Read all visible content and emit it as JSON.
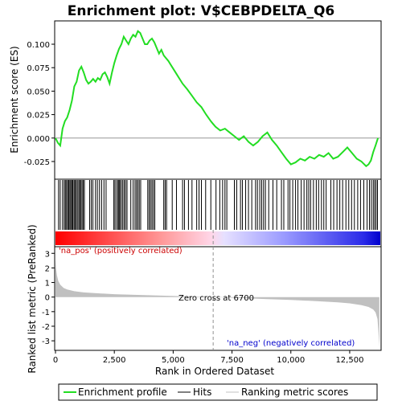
{
  "title": "Enrichment plot: V$CEBPDELTA_Q6",
  "colors": {
    "enrichment_line": "#22dd22",
    "hits": "#000000",
    "metric_fill": "#c0c0c0",
    "zero_cross_line": "#909090",
    "pos_label": "#cc0000",
    "neg_label": "#0000cc"
  },
  "annotations": {
    "pos_label": "'na_pos' (positively correlated)",
    "neg_label": "'na_neg' (negatively correlated)",
    "zero_cross": "Zero cross at 6700"
  },
  "legend": {
    "items": [
      "Enrichment profile",
      "Hits",
      "Ranking metric scores"
    ]
  },
  "chart_data": [
    {
      "type": "line",
      "panel": "enrichment",
      "ylabel": "Enrichment score (ES)",
      "xlim": [
        0,
        13800
      ],
      "ylim": [
        -0.043,
        0.124
      ],
      "yticks": [
        -0.025,
        0.0,
        0.025,
        0.05,
        0.075,
        0.1
      ],
      "ytick_labels": [
        "-0.025",
        "0.000",
        "0.025",
        "0.050",
        "0.075",
        "0.100"
      ],
      "series": [
        {
          "x": [
            0,
            100,
            200,
            300,
            400,
            500,
            600,
            700,
            800,
            900,
            1000,
            1100,
            1200,
            1300,
            1400,
            1500,
            1600,
            1700,
            1800,
            1900,
            2000,
            2100,
            2200,
            2300,
            2400,
            2500,
            2600,
            2700,
            2800,
            2900,
            3000,
            3100,
            3200,
            3300,
            3400,
            3500,
            3600,
            3700,
            3800,
            3900,
            4000,
            4100,
            4200,
            4300,
            4400,
            4500,
            4600,
            4700,
            4800,
            4900,
            5000,
            5200,
            5400,
            5600,
            5800,
            6000,
            6200,
            6400,
            6600,
            6700,
            6800,
            7000,
            7200,
            7400,
            7600,
            7800,
            8000,
            8200,
            8400,
            8600,
            8800,
            9000,
            9200,
            9400,
            9600,
            9800,
            10000,
            10200,
            10400,
            10600,
            10800,
            11000,
            11200,
            11400,
            11600,
            11800,
            12000,
            12200,
            12400,
            12600,
            12800,
            13000,
            13200,
            13300,
            13400,
            13500,
            13600,
            13700
          ],
          "y": [
            0.0,
            -0.005,
            -0.008,
            0.01,
            0.018,
            0.022,
            0.03,
            0.04,
            0.055,
            0.06,
            0.072,
            0.076,
            0.07,
            0.062,
            0.058,
            0.06,
            0.063,
            0.06,
            0.064,
            0.062,
            0.068,
            0.07,
            0.065,
            0.058,
            0.07,
            0.08,
            0.088,
            0.095,
            0.1,
            0.108,
            0.104,
            0.1,
            0.106,
            0.11,
            0.108,
            0.114,
            0.112,
            0.106,
            0.1,
            0.1,
            0.104,
            0.106,
            0.102,
            0.096,
            0.09,
            0.094,
            0.088,
            0.085,
            0.082,
            0.078,
            0.074,
            0.066,
            0.058,
            0.052,
            0.045,
            0.038,
            0.033,
            0.025,
            0.018,
            0.015,
            0.012,
            0.008,
            0.01,
            0.006,
            0.002,
            -0.002,
            0.002,
            -0.004,
            -0.008,
            -0.004,
            0.002,
            0.006,
            -0.002,
            -0.008,
            -0.015,
            -0.022,
            -0.028,
            -0.026,
            -0.022,
            -0.024,
            -0.02,
            -0.022,
            -0.018,
            -0.02,
            -0.016,
            -0.022,
            -0.02,
            -0.015,
            -0.01,
            -0.016,
            -0.022,
            -0.025,
            -0.03,
            -0.028,
            -0.024,
            -0.015,
            -0.008,
            0.0
          ]
        }
      ]
    },
    {
      "type": "scatter",
      "panel": "hits",
      "description_ranks": "positions of gene set members in the ranked list",
      "x": [
        130,
        200,
        300,
        370,
        420,
        470,
        520,
        560,
        610,
        650,
        700,
        740,
        790,
        830,
        880,
        930,
        990,
        1030,
        1080,
        1130,
        1180,
        1230,
        1450,
        1520,
        1590,
        1700,
        1780,
        1870,
        1960,
        2060,
        2150,
        2480,
        2530,
        2600,
        2660,
        2700,
        2740,
        2800,
        2860,
        2920,
        2980,
        3040,
        3200,
        3300,
        3380,
        3440,
        3500,
        3560,
        3620,
        3920,
        3980,
        4040,
        4100,
        4160,
        4220,
        4600,
        4660,
        4720,
        4960,
        5140,
        5400,
        5480,
        5650,
        5800,
        6000,
        6100,
        6200,
        6380,
        6600,
        6820,
        6980,
        7100,
        7200,
        7280,
        7600,
        7700,
        7860,
        7940,
        8080,
        8200,
        8340,
        8500,
        8580,
        8680,
        8760,
        8840,
        8920,
        9060,
        9240,
        9400,
        9600,
        9700,
        9880,
        9960,
        10080,
        10200,
        10300,
        10440,
        10560,
        10680,
        10760,
        10840,
        10960,
        11080,
        11180,
        11300,
        11400,
        11500,
        11700,
        11820,
        11960,
        12080,
        12200,
        12340,
        12460,
        12580,
        12700,
        12840,
        12960,
        13100,
        13240,
        13340,
        13420,
        13500,
        13560,
        13620,
        13680
      ]
    },
    {
      "type": "area",
      "panel": "ranking_metric",
      "xlabel": "Rank in Ordered Dataset",
      "ylabel": "Ranked list metric (PreRanked)",
      "xlim": [
        0,
        13800
      ],
      "ylim": [
        -3.6,
        3.4
      ],
      "yticks": [
        -3,
        -2,
        -1,
        0,
        1,
        2,
        3
      ],
      "ytick_labels": [
        "-3",
        "-2",
        "-1",
        "0",
        "1",
        "2",
        "3"
      ],
      "xticks": [
        0,
        2500,
        5000,
        7500,
        10000,
        12500
      ],
      "xtick_labels": [
        "0",
        "2,500",
        "5,000",
        "7,500",
        "10,000",
        "12,500"
      ],
      "x": [
        0,
        20,
        60,
        120,
        200,
        350,
        500,
        800,
        1200,
        1800,
        2500,
        3500,
        4500,
        5500,
        6200,
        6700,
        7200,
        8000,
        9000,
        10000,
        11000,
        12000,
        12500,
        13000,
        13300,
        13500,
        13600,
        13680,
        13720,
        13760
      ],
      "y": [
        2.6,
        2.0,
        1.5,
        1.1,
        0.85,
        0.62,
        0.52,
        0.4,
        0.32,
        0.26,
        0.2,
        0.15,
        0.1,
        0.05,
        0.02,
        0.0,
        -0.03,
        -0.08,
        -0.14,
        -0.2,
        -0.27,
        -0.36,
        -0.43,
        -0.55,
        -0.68,
        -0.85,
        -1.05,
        -1.5,
        -2.4,
        -3.4
      ]
    }
  ]
}
